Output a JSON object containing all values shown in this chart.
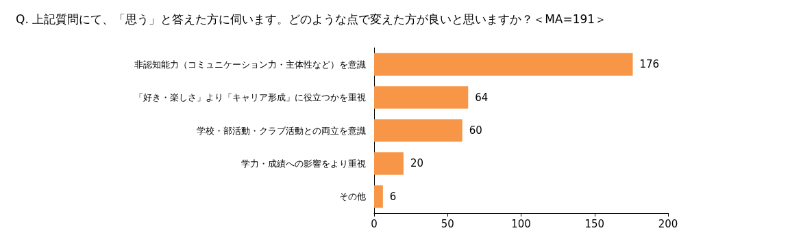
{
  "chart_data": {
    "type": "bar",
    "orientation": "horizontal",
    "title": "Q. 上記質問にて、「思う」と答えた方に伺います。どのような点で変えた方が良いと思いますか？＜MA=191＞",
    "categories": [
      "非認知能力（コミュニケーション力・主体性など）を意識",
      "「好き・楽しさ」より「キャリア形成」に役立つかを重視",
      "学校・部活動・クラブ活動との両立を意識",
      "学力・成績への影響をより重視",
      "その他"
    ],
    "values": [
      176,
      64,
      60,
      20,
      6
    ],
    "color": "#f79646",
    "xlim": [
      0,
      200
    ],
    "xticks": [
      0,
      50,
      100,
      150,
      200
    ],
    "grid": false,
    "data_labels": true
  }
}
